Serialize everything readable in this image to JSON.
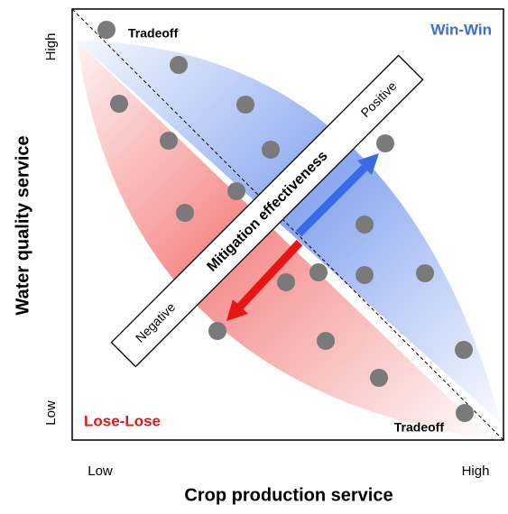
{
  "quadrants": {
    "top_left": "Tradeoff",
    "top_right": "Win-Win",
    "bottom_left": "Lose-Lose",
    "bottom_right": "Tradeoff"
  },
  "y_axis": {
    "title": "Water quality service",
    "high": "High",
    "low": "Low"
  },
  "x_axis": {
    "title": "Crop production service",
    "low": "Low",
    "high": "High"
  },
  "mitigation": {
    "title": "Mitigation effectiveness",
    "positive": "Positive",
    "negative": "Negative"
  }
}
